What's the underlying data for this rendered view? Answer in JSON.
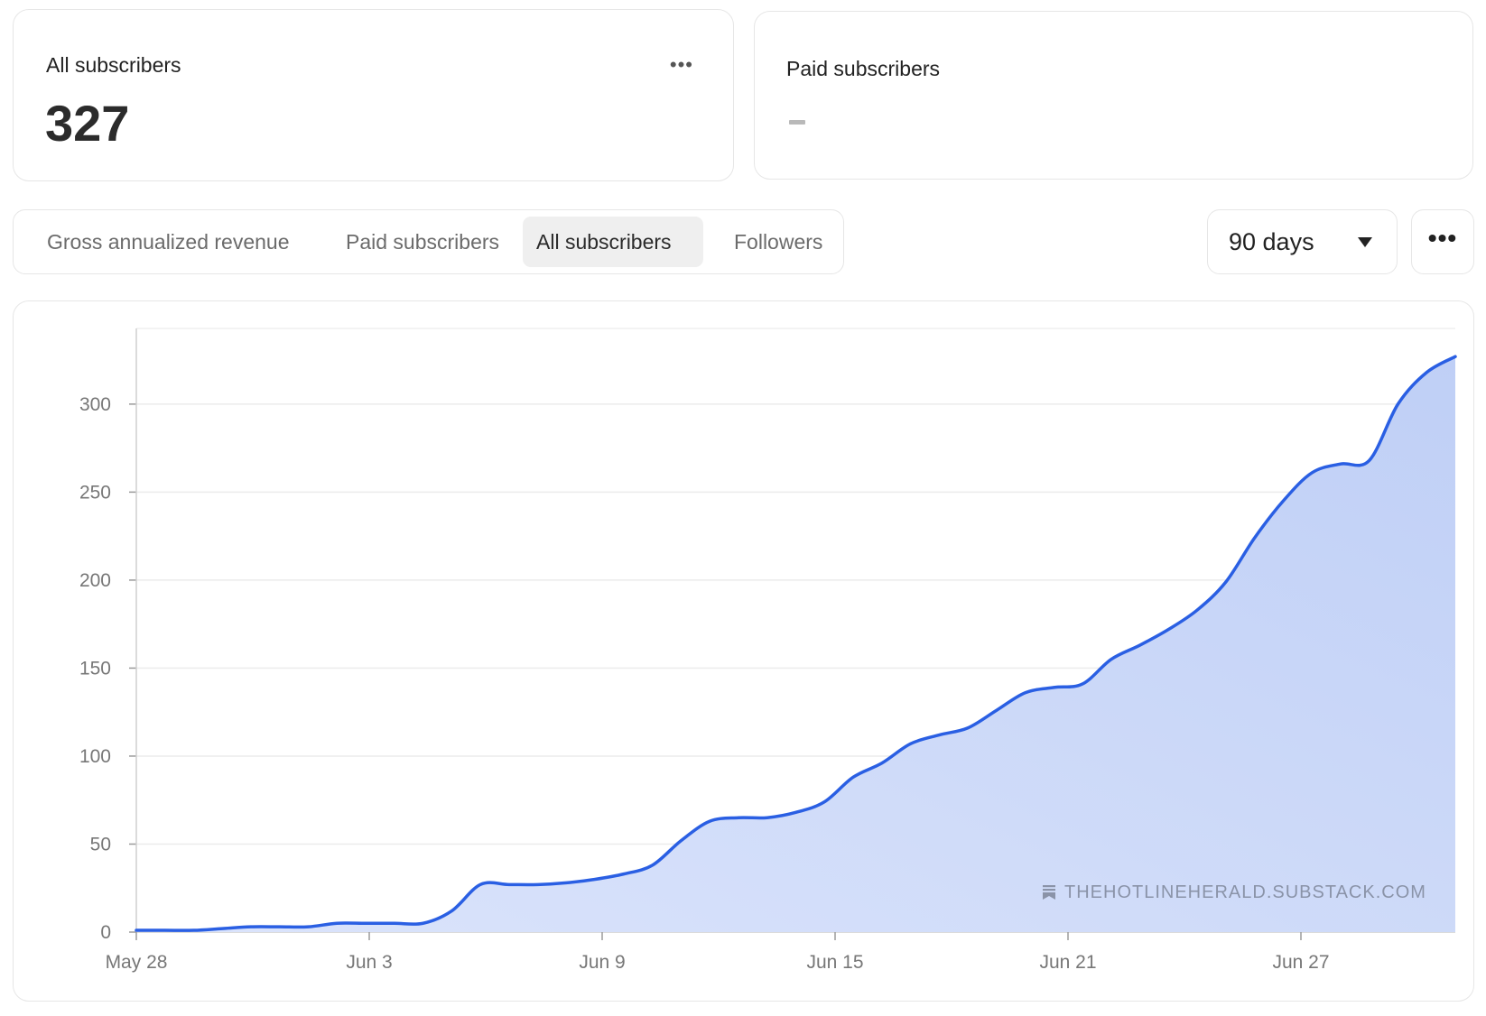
{
  "cards": {
    "all": {
      "title": "All subscribers",
      "value": "327",
      "more_label": "•••"
    },
    "paid": {
      "title": "Paid subscribers",
      "value": "–"
    }
  },
  "tabs": [
    {
      "label": "Gross annualized revenue",
      "active": false
    },
    {
      "label": "Paid subscribers",
      "active": false
    },
    {
      "label": "All subscribers",
      "active": true
    },
    {
      "label": "Followers",
      "active": false
    }
  ],
  "range_select": {
    "value": "90 days",
    "icon": "caret-down-icon"
  },
  "more_button": {
    "label": "•••"
  },
  "watermark": {
    "icon": "bookmark-icon",
    "text": "THEHOTLINEHERALD.SUBSTACK.COM"
  },
  "chart_data": {
    "type": "area",
    "title": "",
    "xlabel": "",
    "ylabel": "",
    "ylim": [
      0,
      343
    ],
    "yticks": [
      0,
      50,
      100,
      150,
      200,
      250,
      300
    ],
    "xticks": [
      {
        "label": "May 28",
        "day": 0
      },
      {
        "label": "Jun 3",
        "day": 6
      },
      {
        "label": "Jun 9",
        "day": 12
      },
      {
        "label": "Jun 15",
        "day": 18
      },
      {
        "label": "Jun 21",
        "day": 24
      },
      {
        "label": "Jun 27",
        "day": 30
      }
    ],
    "grid": true,
    "line_color": "#2a5fe3",
    "fill_color": "#c3d2f7",
    "series": [
      {
        "points": [
          [
            0,
            1
          ],
          [
            0.5,
            1
          ],
          [
            1,
            1
          ],
          [
            1.5,
            2
          ],
          [
            2,
            3
          ],
          [
            2.5,
            3
          ],
          [
            3,
            3
          ],
          [
            3.5,
            5
          ],
          [
            4,
            5
          ],
          [
            4.5,
            5
          ],
          [
            5,
            5
          ],
          [
            5.5,
            12
          ],
          [
            6,
            27
          ],
          [
            6.5,
            27
          ],
          [
            7,
            27
          ],
          [
            7.5,
            28
          ],
          [
            8,
            30
          ],
          [
            8.5,
            33
          ],
          [
            9,
            38
          ],
          [
            9.5,
            52
          ],
          [
            10,
            63
          ],
          [
            10.5,
            65
          ],
          [
            11,
            65
          ],
          [
            11.5,
            68
          ],
          [
            12,
            74
          ],
          [
            12.5,
            88
          ],
          [
            13,
            96
          ],
          [
            13.5,
            107
          ],
          [
            14,
            112
          ],
          [
            14.5,
            116
          ],
          [
            15,
            126
          ],
          [
            15.5,
            136
          ],
          [
            16,
            139
          ],
          [
            16.5,
            141
          ],
          [
            17,
            155
          ],
          [
            17.5,
            163
          ],
          [
            18,
            172
          ],
          [
            18.5,
            183
          ],
          [
            19,
            199
          ],
          [
            19.5,
            224
          ],
          [
            20,
            245
          ],
          [
            20.5,
            261
          ],
          [
            21,
            266
          ],
          [
            21.5,
            268
          ],
          [
            22,
            300
          ],
          [
            22.5,
            318
          ],
          [
            23,
            327
          ]
        ],
        "x_scale": "day_offset_x2"
      }
    ]
  }
}
